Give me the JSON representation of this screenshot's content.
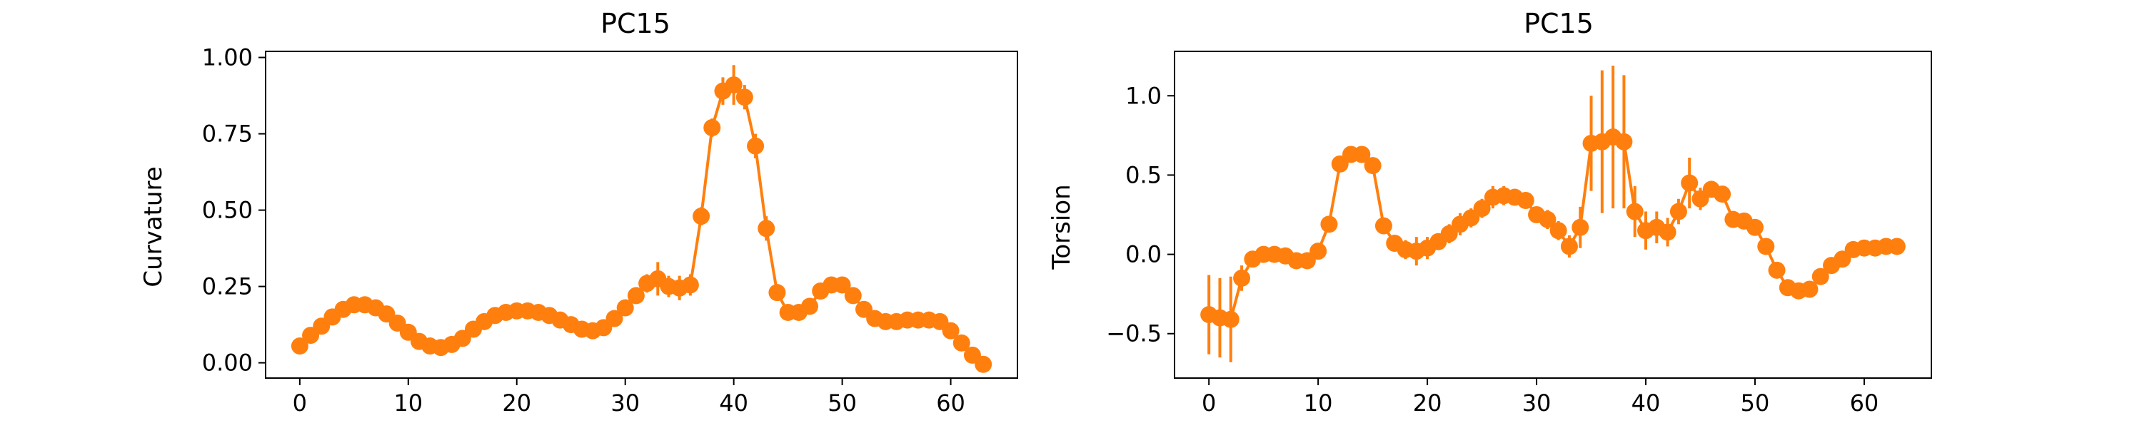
{
  "colors": {
    "series": "#ff7f0e",
    "axes": "#000000",
    "background": "#ffffff"
  },
  "chart_data": [
    {
      "type": "line",
      "title": "PC15",
      "xlabel": "",
      "ylabel": "Curvature",
      "xlim": [
        -3.15,
        66.15
      ],
      "ylim": [
        -0.05,
        1.02
      ],
      "xticks": [
        0,
        10,
        20,
        30,
        40,
        50,
        60
      ],
      "xtick_labels": [
        "0",
        "10",
        "20",
        "30",
        "40",
        "50",
        "60"
      ],
      "yticks": [
        0.0,
        0.25,
        0.5,
        0.75,
        1.0
      ],
      "ytick_labels": [
        "0.00",
        "0.25",
        "0.50",
        "0.75",
        "1.00"
      ],
      "grid": false,
      "x": [
        0,
        1,
        2,
        3,
        4,
        5,
        6,
        7,
        8,
        9,
        10,
        11,
        12,
        13,
        14,
        15,
        16,
        17,
        18,
        19,
        20,
        21,
        22,
        23,
        24,
        25,
        26,
        27,
        28,
        29,
        30,
        31,
        32,
        33,
        34,
        35,
        36,
        37,
        38,
        39,
        40,
        41,
        42,
        43,
        44,
        45,
        46,
        47,
        48,
        49,
        50,
        51,
        52,
        53,
        54,
        55,
        56,
        57,
        58,
        59,
        60,
        61,
        62,
        63
      ],
      "y": [
        0.055,
        0.09,
        0.12,
        0.15,
        0.175,
        0.19,
        0.19,
        0.18,
        0.16,
        0.13,
        0.1,
        0.07,
        0.055,
        0.05,
        0.06,
        0.08,
        0.11,
        0.135,
        0.155,
        0.165,
        0.17,
        0.17,
        0.165,
        0.155,
        0.14,
        0.125,
        0.11,
        0.105,
        0.115,
        0.145,
        0.18,
        0.22,
        0.26,
        0.275,
        0.25,
        0.245,
        0.255,
        0.48,
        0.77,
        0.89,
        0.91,
        0.87,
        0.71,
        0.44,
        0.23,
        0.165,
        0.165,
        0.185,
        0.235,
        0.255,
        0.255,
        0.22,
        0.175,
        0.145,
        0.135,
        0.135,
        0.14,
        0.14,
        0.14,
        0.135,
        0.105,
        0.065,
        0.025,
        -0.005
      ],
      "yerr": [
        0.01,
        0.01,
        0.01,
        0.01,
        0.01,
        0.01,
        0.01,
        0.01,
        0.01,
        0.01,
        0.01,
        0.01,
        0.01,
        0.01,
        0.01,
        0.01,
        0.01,
        0.01,
        0.01,
        0.01,
        0.01,
        0.01,
        0.01,
        0.01,
        0.01,
        0.01,
        0.01,
        0.01,
        0.01,
        0.01,
        0.015,
        0.02,
        0.03,
        0.055,
        0.035,
        0.04,
        0.035,
        0.03,
        0.03,
        0.045,
        0.065,
        0.04,
        0.04,
        0.04,
        0.02,
        0.015,
        0.01,
        0.01,
        0.01,
        0.01,
        0.01,
        0.01,
        0.01,
        0.01,
        0.01,
        0.01,
        0.01,
        0.01,
        0.01,
        0.01,
        0.01,
        0.01,
        0.01,
        0.01
      ]
    },
    {
      "type": "line",
      "title": "PC15",
      "xlabel": "",
      "ylabel": "Torsion",
      "xlim": [
        -3.15,
        66.15
      ],
      "ylim": [
        -0.78,
        1.28
      ],
      "xticks": [
        0,
        10,
        20,
        30,
        40,
        50,
        60
      ],
      "xtick_labels": [
        "0",
        "10",
        "20",
        "30",
        "40",
        "50",
        "60"
      ],
      "yticks": [
        -0.5,
        0.0,
        0.5,
        1.0
      ],
      "ytick_labels": [
        "−0.5",
        "0.0",
        "0.5",
        "1.0"
      ],
      "grid": false,
      "x": [
        0,
        1,
        2,
        3,
        4,
        5,
        6,
        7,
        8,
        9,
        10,
        11,
        12,
        13,
        14,
        15,
        16,
        17,
        18,
        19,
        20,
        21,
        22,
        23,
        24,
        25,
        26,
        27,
        28,
        29,
        30,
        31,
        32,
        33,
        34,
        35,
        36,
        37,
        38,
        39,
        40,
        41,
        42,
        43,
        44,
        45,
        46,
        47,
        48,
        49,
        50,
        51,
        52,
        53,
        54,
        55,
        56,
        57,
        58,
        59,
        60,
        61,
        62,
        63
      ],
      "y": [
        -0.38,
        -0.4,
        -0.41,
        -0.15,
        -0.03,
        0.0,
        0.0,
        -0.01,
        -0.04,
        -0.04,
        0.02,
        0.19,
        0.57,
        0.63,
        0.63,
        0.56,
        0.18,
        0.07,
        0.03,
        0.02,
        0.04,
        0.08,
        0.13,
        0.19,
        0.23,
        0.29,
        0.36,
        0.37,
        0.36,
        0.34,
        0.25,
        0.22,
        0.15,
        0.05,
        0.17,
        0.7,
        0.71,
        0.74,
        0.71,
        0.27,
        0.15,
        0.17,
        0.14,
        0.27,
        0.45,
        0.35,
        0.41,
        0.38,
        0.22,
        0.21,
        0.17,
        0.05,
        -0.1,
        -0.21,
        -0.23,
        -0.22,
        -0.14,
        -0.07,
        -0.03,
        0.03,
        0.04,
        0.04,
        0.05,
        0.05
      ],
      "yerr": [
        0.25,
        0.25,
        0.27,
        0.08,
        0.04,
        0.03,
        0.03,
        0.03,
        0.03,
        0.03,
        0.03,
        0.04,
        0.04,
        0.04,
        0.04,
        0.04,
        0.04,
        0.05,
        0.06,
        0.09,
        0.07,
        0.05,
        0.06,
        0.07,
        0.06,
        0.06,
        0.07,
        0.06,
        0.05,
        0.05,
        0.05,
        0.06,
        0.06,
        0.07,
        0.13,
        0.3,
        0.45,
        0.45,
        0.42,
        0.16,
        0.12,
        0.1,
        0.09,
        0.08,
        0.16,
        0.07,
        0.05,
        0.05,
        0.04,
        0.04,
        0.04,
        0.04,
        0.04,
        0.04,
        0.04,
        0.04,
        0.04,
        0.03,
        0.03,
        0.03,
        0.03,
        0.03,
        0.03,
        0.03
      ]
    }
  ]
}
